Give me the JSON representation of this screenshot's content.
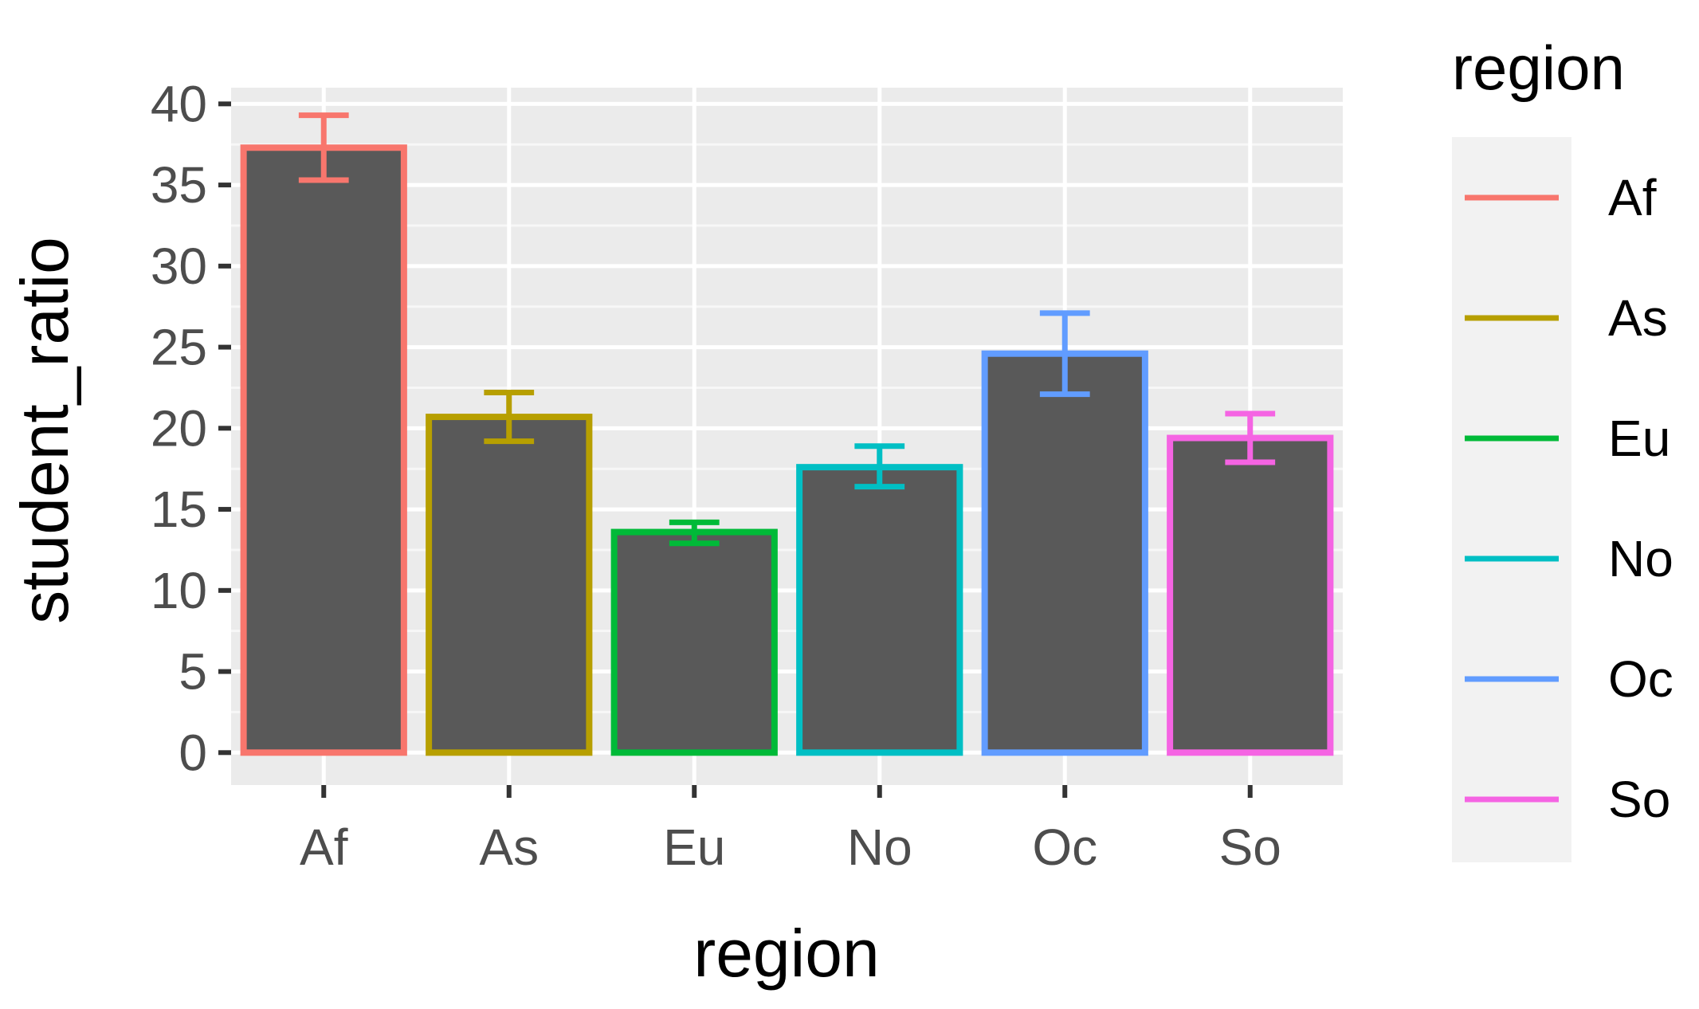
{
  "chart_data": {
    "type": "bar",
    "title": "",
    "xlabel": "region",
    "ylabel": "student_ratio",
    "ylim": [
      -2,
      41
    ],
    "yticks": [
      0,
      5,
      10,
      15,
      20,
      25,
      30,
      35,
      40
    ],
    "grid": true,
    "legend": {
      "title": "region",
      "position": "right"
    },
    "categories": [
      "Af",
      "As",
      "Eu",
      "No",
      "Oc",
      "So"
    ],
    "values": [
      37.3,
      20.7,
      13.6,
      17.6,
      24.6,
      19.4
    ],
    "error_low": [
      35.3,
      19.2,
      12.9,
      16.4,
      22.1,
      17.9
    ],
    "error_high": [
      39.3,
      22.2,
      14.2,
      18.9,
      27.1,
      20.9
    ],
    "colors": {
      "Af": "#F8766D",
      "As": "#B79F00",
      "Eu": "#00BA38",
      "No": "#00BFC4",
      "Oc": "#619CFF",
      "So": "#F564E3"
    },
    "bar_fill": "#595959",
    "panel_background": "#EBEBEB"
  }
}
